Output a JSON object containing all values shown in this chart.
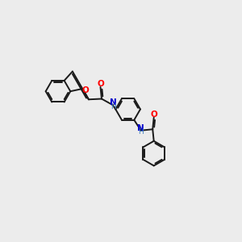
{
  "background_color": "#ececec",
  "bond_color": "#1a1a1a",
  "atom_colors": {
    "O": "#ff0000",
    "N": "#0000cc",
    "C": "#1a1a1a",
    "H": "#4080c0"
  },
  "figsize": [
    3.0,
    3.0
  ],
  "dpi": 100,
  "bond_lw": 1.4,
  "ring_r": 0.52,
  "font_size_atom": 7.5,
  "font_size_H": 6.5
}
